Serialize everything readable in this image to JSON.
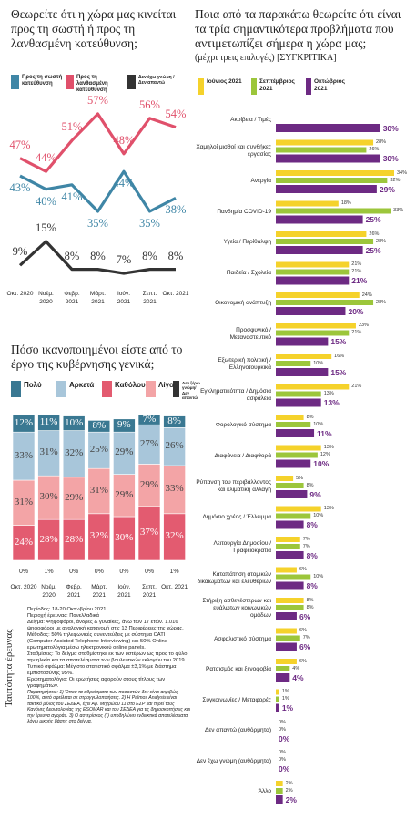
{
  "chart_data": [
    {
      "type": "line",
      "title": "Θεωρείτε ότι η χώρα μας κινείται προς τη σωστή ή προς τη λανθασμένη κατεύθυνση;",
      "categories": [
        "Οκτ. 2020",
        "Νοέμ. 2020",
        "Φεβρ. 2021",
        "Μάρτ. 2021",
        "Ιούν. 2021",
        "Σεπτ. 2021",
        "Οκτ. 2021"
      ],
      "series": [
        {
          "name": "Προς τη σωστή κατεύθυνση",
          "color": "#3f86a6",
          "values": [
            43,
            40,
            41,
            35,
            44,
            35,
            38
          ],
          "value_labels": [
            "43%",
            "40%",
            "41%",
            "35%",
            "44%",
            "35%",
            "38%"
          ]
        },
        {
          "name": "Προς τη λανθασμένη κατεύθυνση",
          "color": "#e0506b",
          "values": [
            47,
            44,
            51,
            57,
            48,
            56,
            54
          ],
          "value_labels": [
            "47%",
            "44%",
            "51%",
            "57%",
            "48%",
            "56%",
            "54%"
          ]
        },
        {
          "name": "Δεν έχω γνώμη / Δεν απαντώ",
          "color": "#333333",
          "values": [
            9,
            15,
            8,
            8,
            7,
            8,
            8
          ],
          "value_labels": [
            "9%",
            "15%",
            "8%",
            "8%",
            "7%",
            "8%",
            "8%"
          ]
        }
      ]
    },
    {
      "type": "stacked_bar",
      "title": "Πόσο ικανοποιημένοι είστε από το έργο της κυβέρνησης γενικά;",
      "categories": [
        "Οκτ. 2020",
        "Νοέμ. 2020",
        "Φεβρ. 2021",
        "Μάρτ. 2021",
        "Ιούν. 2021",
        "Σεπτ. 2021",
        "Οκτ. 2021"
      ],
      "series": [
        {
          "name": "Καθόλου",
          "color": "#e35b70",
          "values": [
            24,
            28,
            28,
            32,
            30,
            37,
            32
          ],
          "value_labels": [
            "24%",
            "28%",
            "28%",
            "32%",
            "30%",
            "37%",
            "32%"
          ]
        },
        {
          "name": "Λίγο",
          "color": "#f3a4a6",
          "values": [
            31,
            30,
            29,
            31,
            29,
            29,
            33
          ],
          "value_labels": [
            "31%",
            "30%",
            "29%",
            "31%",
            "29%",
            "29%",
            "33%"
          ]
        },
        {
          "name": "Αρκετά",
          "color": "#a8c6da",
          "values": [
            33,
            31,
            32,
            25,
            29,
            27,
            26
          ],
          "value_labels": [
            "33%",
            "31%",
            "32%",
            "25%",
            "29%",
            "27%",
            "26%"
          ]
        },
        {
          "name": "Πολύ",
          "color": "#3a7892",
          "values": [
            12,
            11,
            10,
            8,
            9,
            7,
            8
          ],
          "value_labels": [
            "12%",
            "11%",
            "10%",
            "8%",
            "9%",
            "7%",
            "8%"
          ]
        },
        {
          "name": "Δεν ξέρω γνώμη/ Δεν απαντώ",
          "color": "#333333",
          "values": [
            0,
            1,
            0,
            0,
            0,
            0,
            1
          ],
          "value_labels": [
            "0%",
            "1%",
            "0%",
            "0%",
            "0%",
            "0%",
            "1%"
          ]
        }
      ]
    },
    {
      "type": "hbar",
      "title": "Ποια από τα παρακάτω θεωρείτε ότι είναι τα τρία σημαντικότερα προβλήματα που αντιμετωπίζει σήμερα η χώρα μας;",
      "subtitle": "(μέχρι τρεις επιλογές) [ΣΥΓΚΡΙΤΙΚΑ]",
      "categories": [
        "Ακρίβεια / Τιμές",
        "Χαμηλοί μισθοί και συνθήκες εργασίας",
        "Ανεργία",
        "Πανδημία COVID-19",
        "Υγεία / Περίθαλψη",
        "Παιδεία / Σχολεία",
        "Οικονομική ανάπτυξη",
        "Προσφυγικό / Μεταναστευτικό",
        "Εξωτερική πολιτική / Ελληνοτουρκικά",
        "Εγκληματικότητα / Δημόσια ασφάλεια",
        "Φορολογικό σύστημα",
        "Διαφάνεια / Διαφθορά",
        "Ρύπανση του περιβάλλοντος και κλιματική αλλαγή",
        "Δημόσιο χρέος / Έλλειμμα",
        "Λειτουργία Δημοσίου / Γραφειοκρατία",
        "Καταπάτηση ατομικών δικαιωμάτων και ελευθεριών",
        "Στήριξη ασθενέστερων και ευάλωτων κοινωνικών ομάδων",
        "Ασφαλιστικό σύστημα",
        "Ρατσισμός και ξενοφοβία",
        "Συγκοινωνίες / Μεταφορές",
        "Δεν απαντώ (αυθόρμητα)",
        "Δεν έχω γνώμη (αυθόρμητα)",
        "Άλλο"
      ],
      "series": [
        {
          "name": "Ιούνιος 2021",
          "color": "#f5d22b",
          "values": [
            null,
            28,
            34,
            18,
            26,
            21,
            24,
            23,
            16,
            21,
            8,
            13,
            5,
            13,
            7,
            6,
            8,
            6,
            6,
            1,
            0,
            0,
            2
          ],
          "value_labels": [
            null,
            "28%",
            "34%",
            "18%",
            "26%",
            "21%",
            "24%",
            "23%",
            "16%",
            "21%",
            "8%",
            "13%",
            "5%",
            "13%",
            "7%",
            "6%",
            "8%",
            "6%",
            "6%",
            "1%",
            "0%",
            "0%",
            "2%"
          ]
        },
        {
          "name": "Σεπτέμβριος 2021",
          "color": "#9cc63b",
          "values": [
            null,
            26,
            32,
            33,
            28,
            21,
            28,
            21,
            10,
            13,
            10,
            12,
            8,
            10,
            7,
            10,
            8,
            7,
            4,
            1,
            0,
            0,
            2
          ],
          "value_labels": [
            null,
            "26%",
            "32%",
            "33%",
            "28%",
            "21%",
            "28%",
            "21%",
            "10%",
            "13%",
            "10%",
            "12%",
            "8%",
            "10%",
            "7%",
            "10%",
            "8%",
            "7%",
            "4%",
            "1%",
            "0%",
            "0%",
            "2%"
          ]
        },
        {
          "name": "Οκτώβριος 2021",
          "color": "#6d2a83",
          "values": [
            30,
            30,
            29,
            25,
            25,
            21,
            20,
            15,
            15,
            13,
            11,
            10,
            9,
            8,
            8,
            8,
            6,
            6,
            4,
            1,
            0,
            0,
            2
          ],
          "value_labels": [
            "30%",
            "30%",
            "29%",
            "25%",
            "25%",
            "21%",
            "20%",
            "15%",
            "15%",
            "13%",
            "11%",
            "10%",
            "9%",
            "8%",
            "8%",
            "8%",
            "6%",
            "6%",
            "4%",
            "1%",
            "0%",
            "0%",
            "2%"
          ]
        }
      ]
    }
  ],
  "methodology": {
    "label": "Ταυτότητα έρευνας",
    "lines": [
      "Περίοδος: 18-20 Οκτωβρίου 2021",
      "Περιοχή έρευνας: Πανελλαδικά",
      "Δείγμα: Ψηφοφόροι, άνδρες & γυναίκες, άνω των 17 ετών. 1.016 ψηφοφόροι με αναλογική κατανομή στις 13 Περιφέρειες της χώρας.",
      "Μέθοδος: 50% τηλεφωνικές συνεντεύξεις με σύστημα CATI (Computer Assisted Telephone Interviewing) και 50% Online ερωτηματολόγια μέσω ηλεκτρονικού online panels.",
      "Σταθμίσεις: Το δείγμα σταθμίστηκε εκ των υστέρων ως προς το φύλο, την ηλικία και τα αποτελέσματα των βουλευτικών εκλογών του 2019.",
      "Τυπικό σφάλμα: Μέγιστο στατιστικό σφάλμα ±3,1% με διάστημα εμπιστοσύνης 95%.",
      "Ερωτηματολόγιο: Οι ερωτήσεις αφορούν στους τίτλους των γραφημάτων.",
      "Παρατηρήσεις: 1) Όπου τα αθροίσματα των ποσοστών δεν είναι ακριβώς 100%, αυτό οφείλεται σε στρογγυλοποιήσεις. 2) Η Palmos Analysis είναι τακτικό μέλος του ΣΕΔΕΑ, έχει Αρ. Μητρώου 11 στο ΕΣΡ και τηρεί τους Κανόνες Δεοντολογίας της ESOMAR και του ΣΕΔΕΑ για τις δημοσκοπήσεις και την έρευνα αγοράς. 3) Ο αστερίσκος (*) υποδηλώνει ενδεικτικά αποτελέσματα λόγω μικρής βάσης στο δείγμα."
    ]
  }
}
